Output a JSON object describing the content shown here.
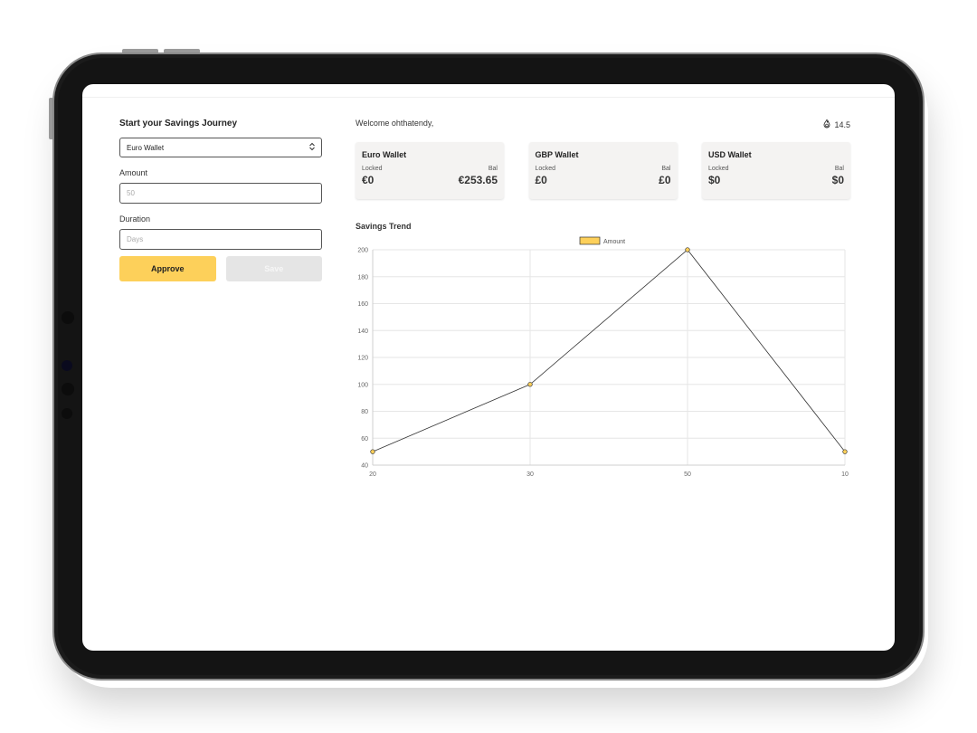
{
  "form": {
    "title": "Start your Savings Journey",
    "wallet_select": "Euro Wallet",
    "amount_label": "Amount",
    "amount_value": "50",
    "duration_label": "Duration",
    "duration_placeholder": "Days",
    "approve_label": "Approve",
    "save_label": "Save"
  },
  "header": {
    "welcome": "Welcome ohthatendy,",
    "points": "14.5"
  },
  "wallets": [
    {
      "name": "Euro Wallet",
      "locked_label": "Locked",
      "bal_label": "Bal",
      "locked": "€0",
      "bal": "€253.65"
    },
    {
      "name": "GBP Wallet",
      "locked_label": "Locked",
      "bal_label": "Bal",
      "locked": "£0",
      "bal": "£0"
    },
    {
      "name": "USD Wallet",
      "locked_label": "Locked",
      "bal_label": "Bal",
      "locked": "$0",
      "bal": "$0"
    }
  ],
  "trend_title": "Savings Trend",
  "chart_data": {
    "type": "line",
    "categories": [
      "20",
      "30",
      "50",
      "10"
    ],
    "series": [
      {
        "name": "Amount",
        "values": [
          50,
          100,
          200,
          50
        ]
      }
    ],
    "ylim": [
      40,
      200
    ],
    "yticks": [
      40,
      60,
      80,
      100,
      120,
      140,
      160,
      180,
      200
    ],
    "grid": true,
    "legend": "top",
    "colors": {
      "point": "#fdd05a",
      "line": "#333333"
    }
  }
}
